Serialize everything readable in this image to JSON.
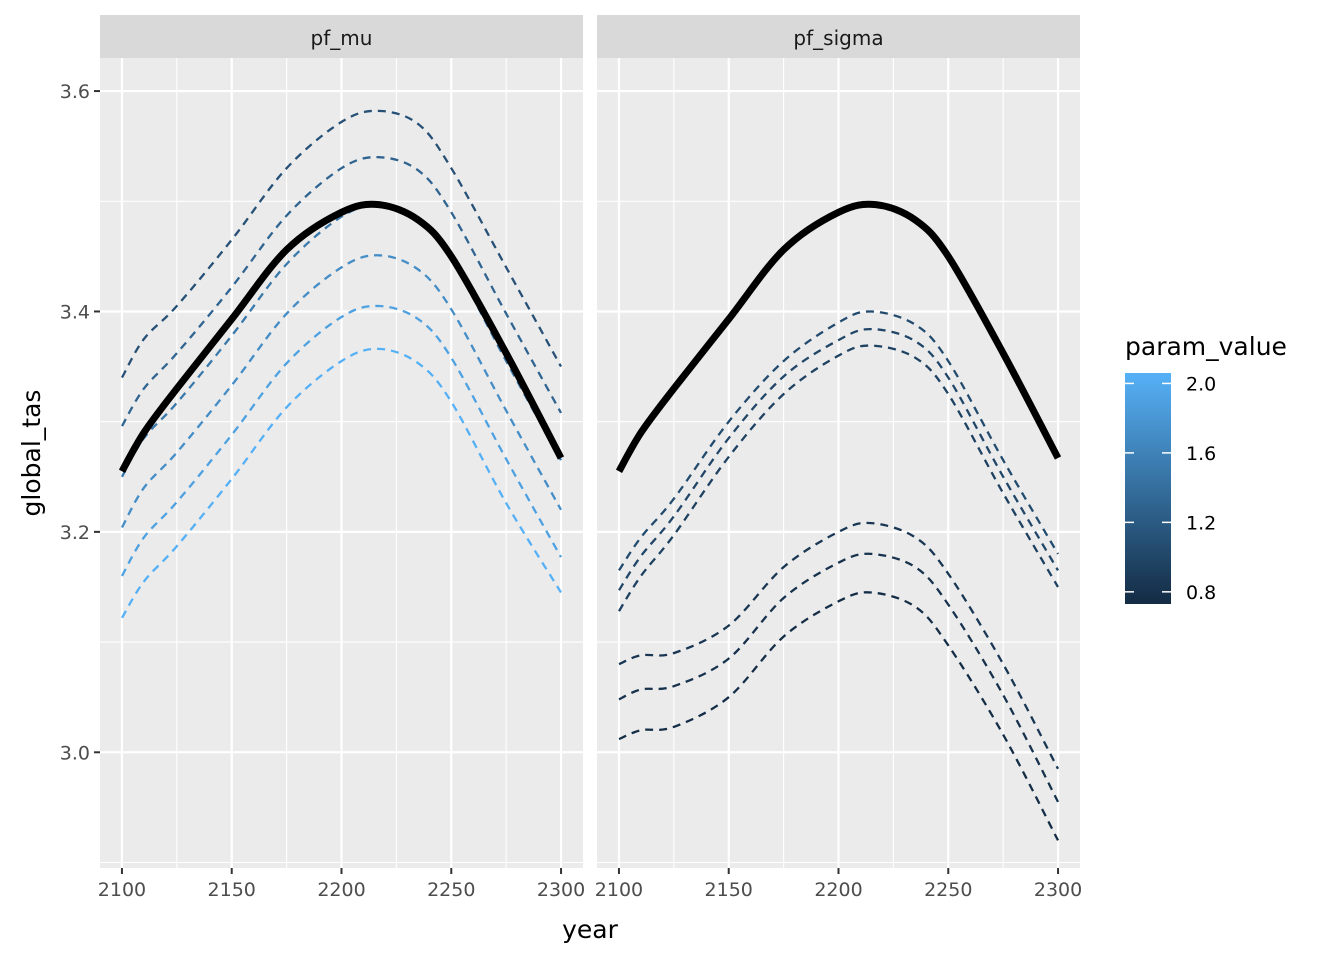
{
  "chart_data": {
    "type": "line",
    "xlabel": "year",
    "ylabel": "global_tas",
    "xlim": [
      2090,
      2310
    ],
    "ylim": [
      2.895,
      3.63
    ],
    "x_ticks": [
      2100,
      2150,
      2200,
      2250,
      2300
    ],
    "x_tick_labels": [
      "2100",
      "2150",
      "2200",
      "2250",
      "2300"
    ],
    "y_ticks": [
      3.0,
      3.2,
      3.4,
      3.6
    ],
    "y_tick_labels": [
      "3.0",
      "3.2",
      "3.4",
      "3.6"
    ],
    "grid": true,
    "legend": {
      "title": "param_value",
      "position": "right",
      "type": "colorbar",
      "range": [
        0.73,
        2.06
      ],
      "low_color": "#132B43",
      "high_color": "#56B1F7",
      "breaks": [
        2.0,
        1.6,
        1.2,
        0.8
      ],
      "break_labels": [
        "2.0",
        "1.6",
        "1.2",
        "0.8"
      ]
    },
    "facets": [
      {
        "strip": "pf_mu",
        "baseline": {
          "style": "solid",
          "color": "#000000",
          "x": [
            2100,
            2110,
            2125,
            2150,
            2175,
            2200,
            2217,
            2235,
            2250,
            2275,
            2300
          ],
          "y": [
            3.255,
            3.29,
            3.33,
            3.393,
            3.456,
            3.49,
            3.497,
            3.483,
            3.45,
            3.362,
            3.267
          ]
        },
        "series": [
          {
            "param_value": 1.1,
            "style": "dashed",
            "x": [
              2100,
              2110,
              2125,
              2150,
              2175,
              2200,
              2217,
              2235,
              2250,
              2275,
              2300
            ],
            "y": [
              3.34,
              3.375,
              3.405,
              3.465,
              3.53,
              3.572,
              3.582,
              3.57,
              3.53,
              3.44,
              3.35
            ]
          },
          {
            "param_value": 1.3,
            "style": "dashed",
            "x": [
              2100,
              2110,
              2125,
              2150,
              2175,
              2200,
              2217,
              2235,
              2250,
              2275,
              2300
            ],
            "y": [
              3.296,
              3.33,
              3.362,
              3.422,
              3.487,
              3.53,
              3.54,
              3.528,
              3.49,
              3.398,
              3.308
            ]
          },
          {
            "param_value": 1.5,
            "style": "dashed",
            "x": [
              2100,
              2110,
              2125,
              2150,
              2175,
              2200,
              2217,
              2235,
              2250,
              2275,
              2300
            ],
            "y": [
              3.25,
              3.285,
              3.317,
              3.378,
              3.443,
              3.486,
              3.496,
              3.484,
              3.448,
              3.355,
              3.265
            ]
          },
          {
            "param_value": 1.7,
            "style": "dashed",
            "x": [
              2100,
              2110,
              2125,
              2150,
              2175,
              2200,
              2217,
              2235,
              2250,
              2275,
              2300
            ],
            "y": [
              3.204,
              3.24,
              3.272,
              3.333,
              3.398,
              3.44,
              3.451,
              3.438,
              3.402,
              3.31,
              3.22
            ]
          },
          {
            "param_value": 1.9,
            "style": "dashed",
            "x": [
              2100,
              2110,
              2125,
              2150,
              2175,
              2200,
              2217,
              2235,
              2250,
              2275,
              2300
            ],
            "y": [
              3.16,
              3.195,
              3.227,
              3.288,
              3.353,
              3.395,
              3.405,
              3.393,
              3.358,
              3.266,
              3.177
            ]
          },
          {
            "param_value": 2.05,
            "style": "dashed",
            "x": [
              2100,
              2110,
              2125,
              2150,
              2175,
              2200,
              2217,
              2235,
              2250,
              2275,
              2300
            ],
            "y": [
              3.122,
              3.155,
              3.187,
              3.248,
              3.313,
              3.355,
              3.366,
              3.353,
              3.318,
              3.226,
              3.145
            ]
          }
        ]
      },
      {
        "strip": "pf_sigma",
        "baseline": {
          "style": "solid",
          "color": "#000000",
          "x": [
            2100,
            2110,
            2125,
            2150,
            2175,
            2200,
            2217,
            2235,
            2250,
            2275,
            2300
          ],
          "y": [
            3.255,
            3.29,
            3.33,
            3.393,
            3.456,
            3.49,
            3.497,
            3.483,
            3.45,
            3.362,
            3.267
          ]
        },
        "series": [
          {
            "param_value": 1.05,
            "style": "dashed",
            "x": [
              2100,
              2110,
              2125,
              2150,
              2175,
              2200,
              2215,
              2235,
              2250,
              2275,
              2300
            ],
            "y": [
              3.165,
              3.195,
              3.23,
              3.3,
              3.355,
              3.39,
              3.4,
              3.388,
              3.355,
              3.265,
              3.18
            ]
          },
          {
            "param_value": 1.0,
            "style": "dashed",
            "x": [
              2100,
              2110,
              2125,
              2150,
              2175,
              2200,
              2215,
              2235,
              2250,
              2275,
              2300
            ],
            "y": [
              3.147,
              3.178,
              3.214,
              3.285,
              3.341,
              3.374,
              3.384,
              3.373,
              3.34,
              3.25,
              3.165
            ]
          },
          {
            "param_value": 0.95,
            "style": "dashed",
            "x": [
              2100,
              2110,
              2125,
              2150,
              2175,
              2200,
              2215,
              2235,
              2250,
              2275,
              2300
            ],
            "y": [
              3.128,
              3.16,
              3.197,
              3.268,
              3.325,
              3.36,
              3.369,
              3.358,
              3.325,
              3.235,
              3.15
            ]
          },
          {
            "param_value": 0.85,
            "style": "dashed",
            "x": [
              2100,
              2110,
              2125,
              2150,
              2175,
              2200,
              2215,
              2235,
              2250,
              2275,
              2300
            ],
            "y": [
              3.08,
              3.088,
              3.09,
              3.115,
              3.168,
              3.2,
              3.208,
              3.195,
              3.162,
              3.08,
              2.985
            ]
          },
          {
            "param_value": 0.8,
            "style": "dashed",
            "x": [
              2100,
              2110,
              2125,
              2150,
              2175,
              2200,
              2215,
              2235,
              2250,
              2275,
              2300
            ],
            "y": [
              3.048,
              3.057,
              3.06,
              3.085,
              3.14,
              3.172,
              3.18,
              3.168,
              3.134,
              3.052,
              2.955
            ]
          },
          {
            "param_value": 0.75,
            "style": "dashed",
            "x": [
              2100,
              2110,
              2125,
              2150,
              2175,
              2200,
              2215,
              2235,
              2250,
              2275,
              2300
            ],
            "y": [
              3.012,
              3.02,
              3.023,
              3.05,
              3.105,
              3.137,
              3.145,
              3.132,
              3.097,
              3.016,
              2.92
            ]
          }
        ]
      }
    ]
  }
}
